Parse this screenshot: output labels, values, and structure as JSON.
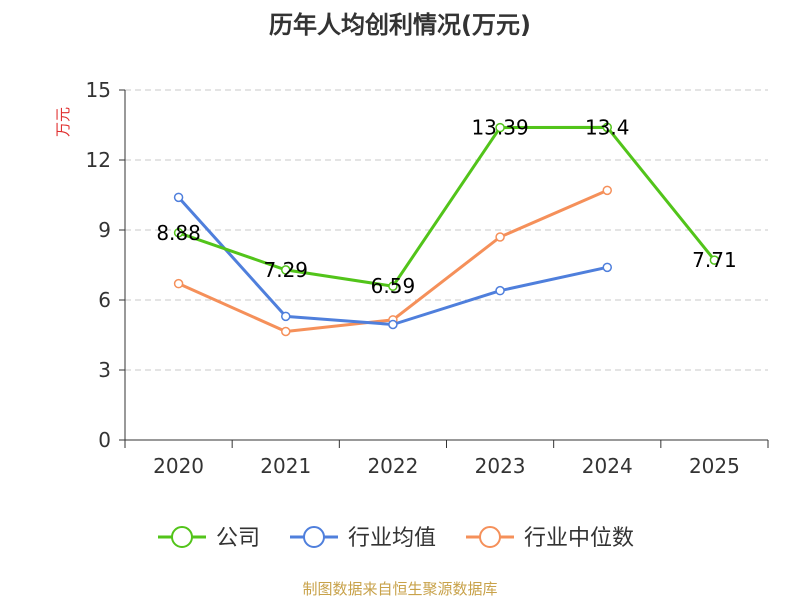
{
  "source": "制图数据来自恒生聚源数据库",
  "source_color": "#c8a24a",
  "chart_data": {
    "type": "line",
    "title": "历年人均创利情况(万元)",
    "xlabel": "",
    "ylabel": "万元",
    "categories": [
      "2020",
      "2021",
      "2022",
      "2023",
      "2024",
      "2025"
    ],
    "ylim": [
      0,
      15
    ],
    "yticks": [
      0,
      3,
      6,
      9,
      12,
      15
    ],
    "grid": true,
    "legend_position": "bottom",
    "series": [
      {
        "name": "公司",
        "color": "#52c41a",
        "values": [
          8.88,
          7.29,
          6.59,
          13.39,
          13.4,
          7.71
        ],
        "data_labels": [
          "8.88",
          "7.29",
          "6.59",
          "13.39",
          "13.4",
          "7.71"
        ]
      },
      {
        "name": "行业均值",
        "color": "#4f7fdc",
        "values": [
          10.4,
          5.3,
          4.95,
          6.4,
          7.4,
          null
        ]
      },
      {
        "name": "行业中位数",
        "color": "#f5905a",
        "values": [
          6.7,
          4.65,
          5.15,
          8.7,
          10.7,
          null
        ]
      }
    ]
  }
}
